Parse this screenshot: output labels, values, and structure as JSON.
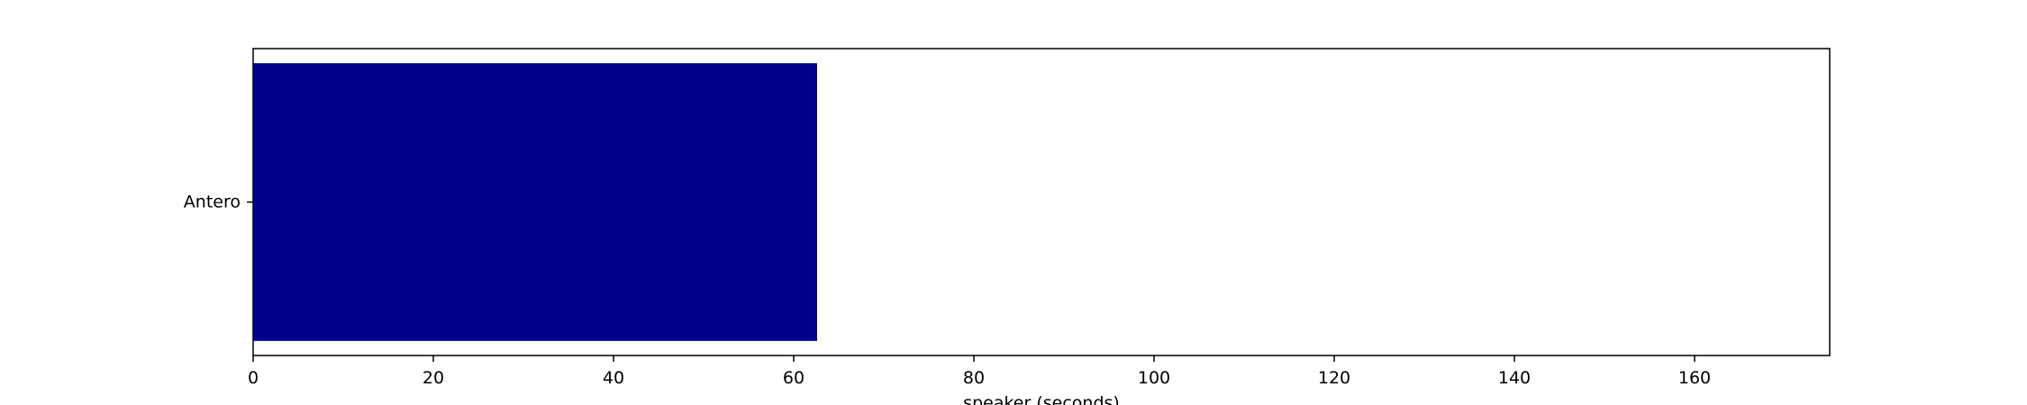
{
  "chart_data": {
    "type": "bar",
    "orientation": "horizontal",
    "title": "",
    "xlabel": "speaker (seconds)",
    "ylabel": "",
    "categories": [
      "Antero"
    ],
    "values": [
      62.6
    ],
    "xlim": [
      0,
      175
    ],
    "xticks": [
      0,
      20,
      40,
      60,
      80,
      100,
      120,
      140,
      160
    ],
    "grid": false,
    "legend": "none",
    "bar_color": "#00008b"
  }
}
